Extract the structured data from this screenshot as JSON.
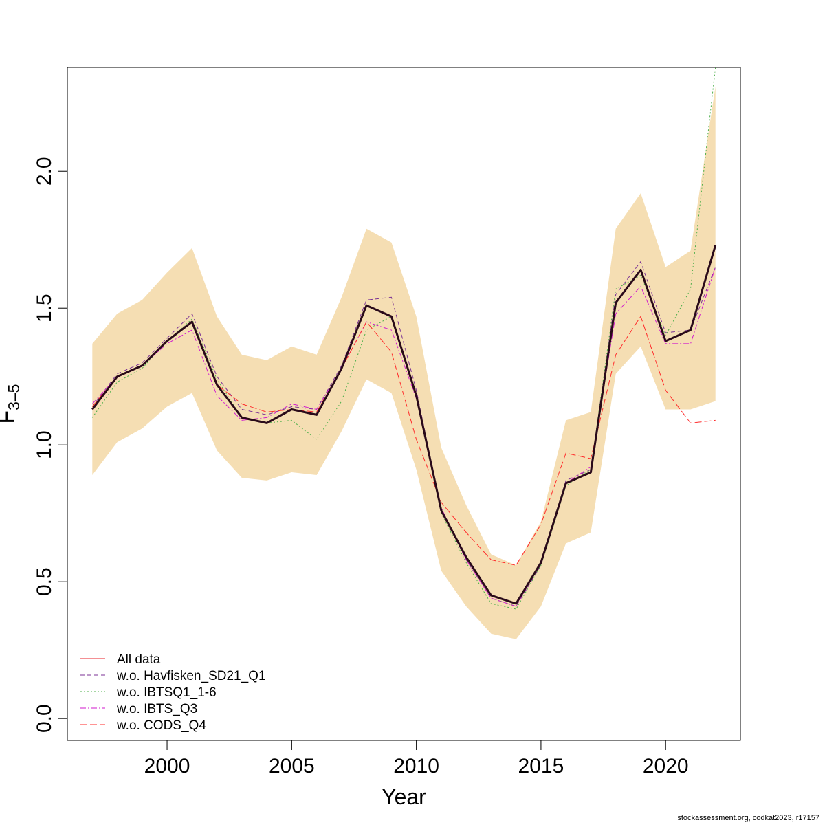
{
  "chart_data": {
    "type": "line",
    "xlabel": "Year",
    "ylabel_main": "F",
    "ylabel_sub": "3–5",
    "xlim": [
      1996,
      2023
    ],
    "ylim": [
      -0.08,
      2.38
    ],
    "x_ticks": [
      2000,
      2005,
      2010,
      2015,
      2020
    ],
    "x_tick_labels": [
      "2000",
      "2005",
      "2010",
      "2015",
      "2020"
    ],
    "y_ticks": [
      0,
      0.5,
      1,
      1.5,
      2
    ],
    "y_tick_labels": [
      "0.0",
      "0.5",
      "1.0",
      "1.5",
      "2.0"
    ],
    "years": [
      1997,
      1998,
      1999,
      2000,
      2001,
      2002,
      2003,
      2004,
      2005,
      2006,
      2007,
      2008,
      2009,
      2010,
      2011,
      2012,
      2013,
      2014,
      2015,
      2016,
      2017,
      2018,
      2019,
      2020,
      2021,
      2022
    ],
    "band": {
      "color": "#F5DEB3",
      "upper": [
        1.37,
        1.48,
        1.53,
        1.63,
        1.72,
        1.47,
        1.33,
        1.31,
        1.36,
        1.33,
        1.54,
        1.79,
        1.74,
        1.47,
        0.99,
        0.78,
        0.6,
        0.56,
        0.72,
        1.09,
        1.12,
        1.79,
        1.92,
        1.65,
        1.71,
        2.31
      ],
      "lower": [
        0.89,
        1.01,
        1.06,
        1.14,
        1.19,
        0.98,
        0.88,
        0.87,
        0.9,
        0.89,
        1.05,
        1.24,
        1.19,
        0.91,
        0.54,
        0.41,
        0.31,
        0.29,
        0.41,
        0.64,
        0.68,
        1.26,
        1.36,
        1.13,
        1.13,
        1.16
      ]
    },
    "estimate": {
      "color": "#2a0a1a",
      "values": [
        1.13,
        1.25,
        1.29,
        1.38,
        1.45,
        1.22,
        1.1,
        1.08,
        1.13,
        1.11,
        1.28,
        1.51,
        1.47,
        1.18,
        0.76,
        0.59,
        0.45,
        0.42,
        0.57,
        0.86,
        0.9,
        1.52,
        1.64,
        1.38,
        1.42,
        1.73
      ]
    },
    "series": [
      {
        "name": "All data",
        "color": "#E8202A",
        "dash": "",
        "values": [
          1.13,
          1.25,
          1.29,
          1.38,
          1.45,
          1.22,
          1.1,
          1.08,
          1.13,
          1.11,
          1.28,
          1.51,
          1.47,
          1.18,
          0.76,
          0.59,
          0.45,
          0.42,
          0.57,
          0.86,
          0.9,
          1.52,
          1.64,
          1.38,
          1.42,
          1.73
        ]
      },
      {
        "name": "w.o. Havfisken_SD21_Q1",
        "color": "#7B3294",
        "dash": "6,4",
        "values": [
          1.14,
          1.26,
          1.3,
          1.39,
          1.48,
          1.25,
          1.13,
          1.11,
          1.14,
          1.13,
          1.29,
          1.53,
          1.54,
          1.2,
          0.76,
          0.58,
          0.44,
          0.41,
          0.56,
          0.87,
          0.91,
          1.55,
          1.67,
          1.41,
          1.42,
          1.65
        ]
      },
      {
        "name": "w.o. IBTSQ1_1-6",
        "color": "#4DAF4A",
        "dash": "2,3",
        "values": [
          1.1,
          1.23,
          1.28,
          1.38,
          1.46,
          1.24,
          1.1,
          1.08,
          1.09,
          1.02,
          1.16,
          1.42,
          1.47,
          1.18,
          0.75,
          0.57,
          0.42,
          0.4,
          0.56,
          0.85,
          0.91,
          1.57,
          1.62,
          1.4,
          1.57,
          2.38
        ]
      },
      {
        "name": "w.o. IBTS_Q3",
        "color": "#D01ACD",
        "dash": "8,3,2,3",
        "values": [
          1.15,
          1.25,
          1.29,
          1.37,
          1.42,
          1.18,
          1.09,
          1.1,
          1.15,
          1.13,
          1.28,
          1.45,
          1.42,
          1.17,
          0.77,
          0.58,
          0.44,
          0.41,
          0.57,
          0.86,
          0.92,
          1.48,
          1.58,
          1.37,
          1.37,
          1.65
        ]
      },
      {
        "name": "w.o. CODS_Q4",
        "color": "#FF2A2A",
        "dash": "10,4",
        "values": [
          1.14,
          1.25,
          1.29,
          1.38,
          1.45,
          1.22,
          1.15,
          1.12,
          1.13,
          1.12,
          1.28,
          1.45,
          1.34,
          1.02,
          0.79,
          0.68,
          0.58,
          0.56,
          0.71,
          0.97,
          0.95,
          1.33,
          1.47,
          1.2,
          1.08,
          1.09
        ]
      }
    ],
    "legend_position": "bottom-left",
    "grid": false
  },
  "footer": {
    "credit": "stockassessment.org, codkat2023, r17157"
  }
}
